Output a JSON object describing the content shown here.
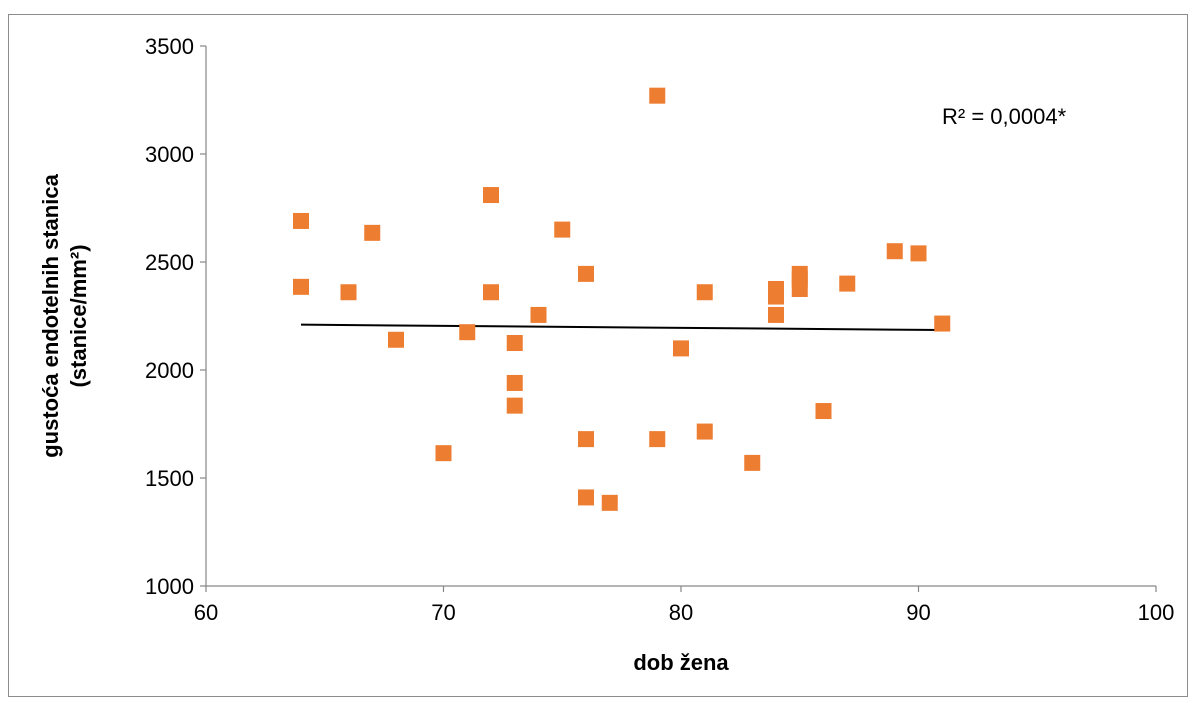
{
  "chart_data": {
    "type": "scatter",
    "title": "",
    "xlabel": "dob žena",
    "ylabel_line1": "gustoća endotelnih stanica",
    "ylabel_line2": "(stanice/mm²)",
    "xlim": [
      60,
      100
    ],
    "ylim": [
      1000,
      3500
    ],
    "xticks": [
      60,
      70,
      80,
      90,
      100
    ],
    "yticks": [
      1000,
      1500,
      2000,
      2500,
      3000,
      3500
    ],
    "grid": false,
    "marker_color": "#ED7D31",
    "trendline_color": "#000000",
    "annotation": "R² = 0,0004*",
    "trendline": {
      "x": [
        64,
        91
      ],
      "y": [
        2210,
        2185
      ]
    },
    "points": [
      {
        "x": 64,
        "y": 2690
      },
      {
        "x": 64,
        "y": 2385
      },
      {
        "x": 66,
        "y": 2360
      },
      {
        "x": 67,
        "y": 2635
      },
      {
        "x": 68,
        "y": 2140
      },
      {
        "x": 70,
        "y": 1615
      },
      {
        "x": 71,
        "y": 2175
      },
      {
        "x": 72,
        "y": 2810
      },
      {
        "x": 72,
        "y": 2360
      },
      {
        "x": 73,
        "y": 2125
      },
      {
        "x": 73,
        "y": 1940
      },
      {
        "x": 73,
        "y": 1835
      },
      {
        "x": 74,
        "y": 2255
      },
      {
        "x": 75,
        "y": 2650
      },
      {
        "x": 76,
        "y": 2445
      },
      {
        "x": 76,
        "y": 1680
      },
      {
        "x": 76,
        "y": 1410
      },
      {
        "x": 77,
        "y": 1385
      },
      {
        "x": 79,
        "y": 3270
      },
      {
        "x": 79,
        "y": 1680
      },
      {
        "x": 80,
        "y": 2100
      },
      {
        "x": 81,
        "y": 2360
      },
      {
        "x": 81,
        "y": 1715
      },
      {
        "x": 83,
        "y": 1570
      },
      {
        "x": 84,
        "y": 2375
      },
      {
        "x": 84,
        "y": 2340
      },
      {
        "x": 84,
        "y": 2255
      },
      {
        "x": 85,
        "y": 2445
      },
      {
        "x": 85,
        "y": 2420
      },
      {
        "x": 85,
        "y": 2375
      },
      {
        "x": 86,
        "y": 1810
      },
      {
        "x": 87,
        "y": 2400
      },
      {
        "x": 89,
        "y": 2550
      },
      {
        "x": 90,
        "y": 2540
      },
      {
        "x": 91,
        "y": 2215
      }
    ]
  }
}
